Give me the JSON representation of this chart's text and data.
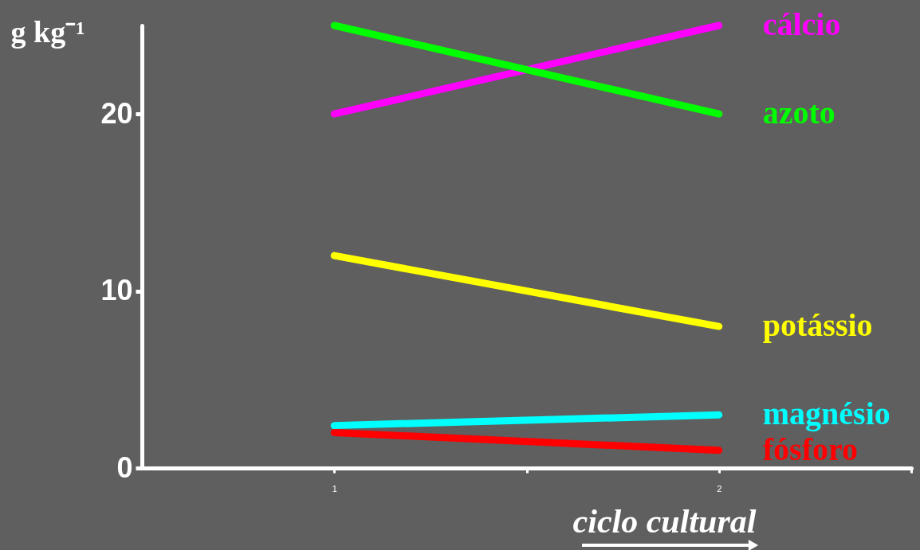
{
  "chart_data": {
    "type": "line",
    "xlabel": "ciclo cultural",
    "ylabel": "g kg⁻¹",
    "x": [
      1,
      2
    ],
    "series": [
      {
        "name": "cálcio",
        "color": "#ff00ff",
        "values": [
          20,
          25
        ]
      },
      {
        "name": "azoto",
        "color": "#00ff00",
        "values": [
          25,
          20
        ]
      },
      {
        "name": "potássio",
        "color": "#ffff00",
        "values": [
          12,
          8
        ]
      },
      {
        "name": "magnésio",
        "color": "#00ffff",
        "values": [
          2.4,
          3.0
        ]
      },
      {
        "name": "fósforo",
        "color": "#ff0000",
        "values": [
          2.0,
          1.0
        ]
      }
    ],
    "xlim": [
      0.5,
      2.5
    ],
    "xticks": [
      1,
      2,
      {
        "value": 1.5,
        "label": null
      },
      {
        "value": 2.5,
        "label": null
      }
    ],
    "ylim": [
      0,
      25
    ],
    "yticks": [
      0,
      10,
      20
    ],
    "grid": false,
    "legend": false,
    "line_style": "solid"
  }
}
